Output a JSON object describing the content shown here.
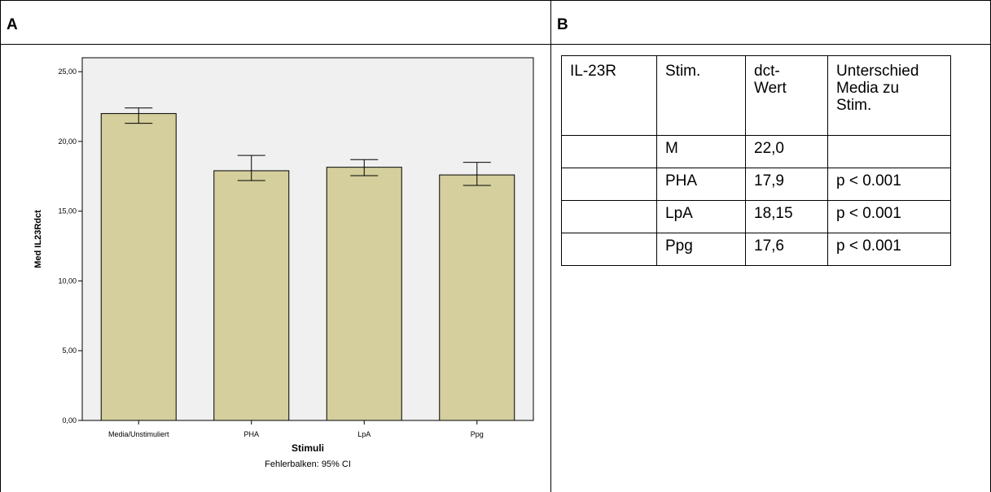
{
  "panels": {
    "a_label": "A",
    "b_label": "B"
  },
  "chart_data": {
    "type": "bar",
    "categories": [
      "Media/Unstimuliert",
      "PHA",
      "LpA",
      "Ppg"
    ],
    "values": [
      22.0,
      17.9,
      18.15,
      17.6
    ],
    "error_bars": [
      {
        "low": 21.3,
        "high": 22.4
      },
      {
        "low": 17.2,
        "high": 19.0
      },
      {
        "low": 17.55,
        "high": 18.7
      },
      {
        "low": 16.85,
        "high": 18.5
      }
    ],
    "yticks": [
      "0,00",
      "5,00",
      "10,00",
      "15,00",
      "20,00",
      "25,00"
    ],
    "ytick_values": [
      0,
      5,
      10,
      15,
      20,
      25
    ],
    "ylim": [
      0,
      26.0
    ],
    "xlabel": "Stimuli",
    "ylabel": "Med IL23Rdct",
    "caption": "Fehlerbalken: 95% CI",
    "grid": false,
    "colors": {
      "bar": "#d4cf9c",
      "plot_bg": "#f0f0f0",
      "stroke": "#000000"
    }
  },
  "table": {
    "headers": [
      "IL-23R",
      "Stim.",
      "dct-\nWert",
      "Unterschied\nMedia zu\nStim."
    ],
    "rows": [
      [
        "",
        "M",
        "22,0",
        ""
      ],
      [
        "",
        "PHA",
        "17,9",
        "p < 0.001"
      ],
      [
        "",
        "LpA",
        "18,15",
        "p < 0.001"
      ],
      [
        "",
        "Ppg",
        "17,6",
        "p < 0.001"
      ]
    ]
  }
}
